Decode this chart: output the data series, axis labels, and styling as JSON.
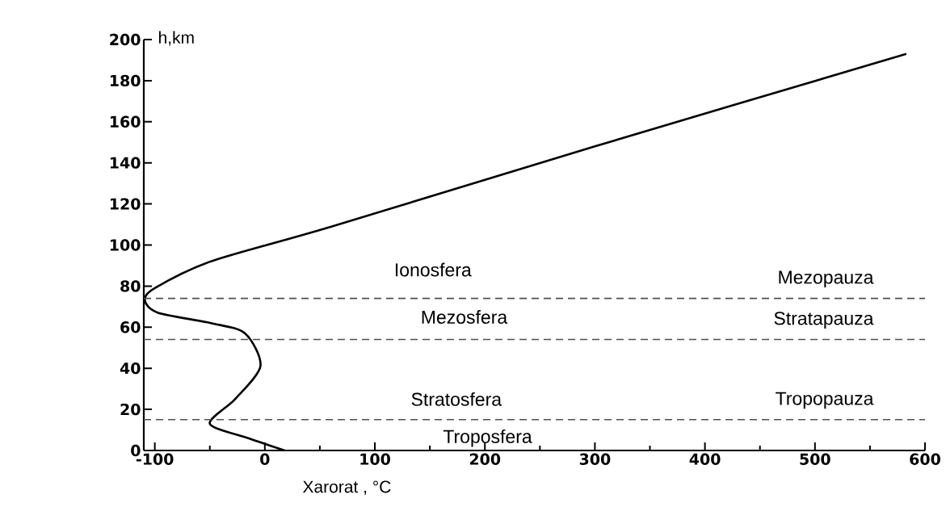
{
  "chart_data": {
    "type": "line",
    "xlabel": "Xarorat , °C",
    "ylabel": "h,km",
    "x": [
      18,
      -15,
      -50,
      -27,
      -4,
      -18,
      -49,
      -97,
      -109,
      -100,
      -49,
      61,
      300,
      583
    ],
    "series": [
      {
        "color": "#000000",
        "values": [
          0,
          6,
          13,
          25,
          41,
          57,
          62,
          67,
          73,
          79,
          92,
          109,
          148,
          193
        ]
      }
    ],
    "xlim": [
      -110,
      600
    ],
    "ylim": [
      0,
      200
    ],
    "xticks": [
      -100,
      0,
      100,
      200,
      300,
      400,
      500,
      600
    ],
    "yticks": [
      0,
      20,
      40,
      60,
      80,
      100,
      120,
      140,
      160,
      180,
      200
    ],
    "grid": false,
    "marker": "none",
    "line_style": "solid",
    "ref_lines": [
      {
        "axis": "y",
        "value": 74,
        "label": "Mezopauza",
        "color": "#505050",
        "line_style": "dashed"
      },
      {
        "axis": "y",
        "value": 54,
        "label": "Stratapauza",
        "color": "#505050",
        "line_style": "dashed"
      },
      {
        "axis": "y",
        "value": 15,
        "label": "Tropopauza",
        "color": "#505050",
        "line_style": "dashed"
      }
    ],
    "annotations": [
      "Ionosfera",
      "Mezosfera",
      "Stratosfera",
      "Troposfera"
    ]
  }
}
